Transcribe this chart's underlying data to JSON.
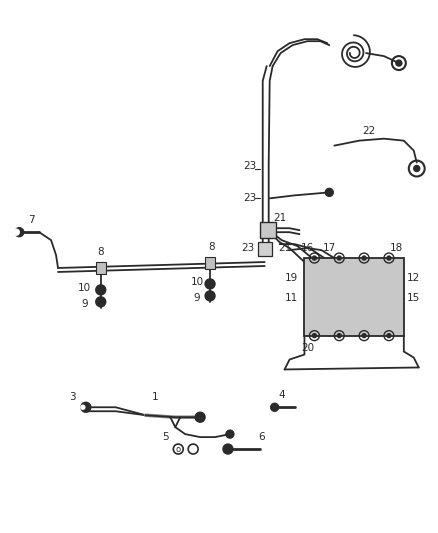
{
  "background_color": "#ffffff",
  "fig_width": 4.38,
  "fig_height": 5.33,
  "dpi": 100,
  "line_color": "#2a2a2a",
  "line_width": 1.3
}
